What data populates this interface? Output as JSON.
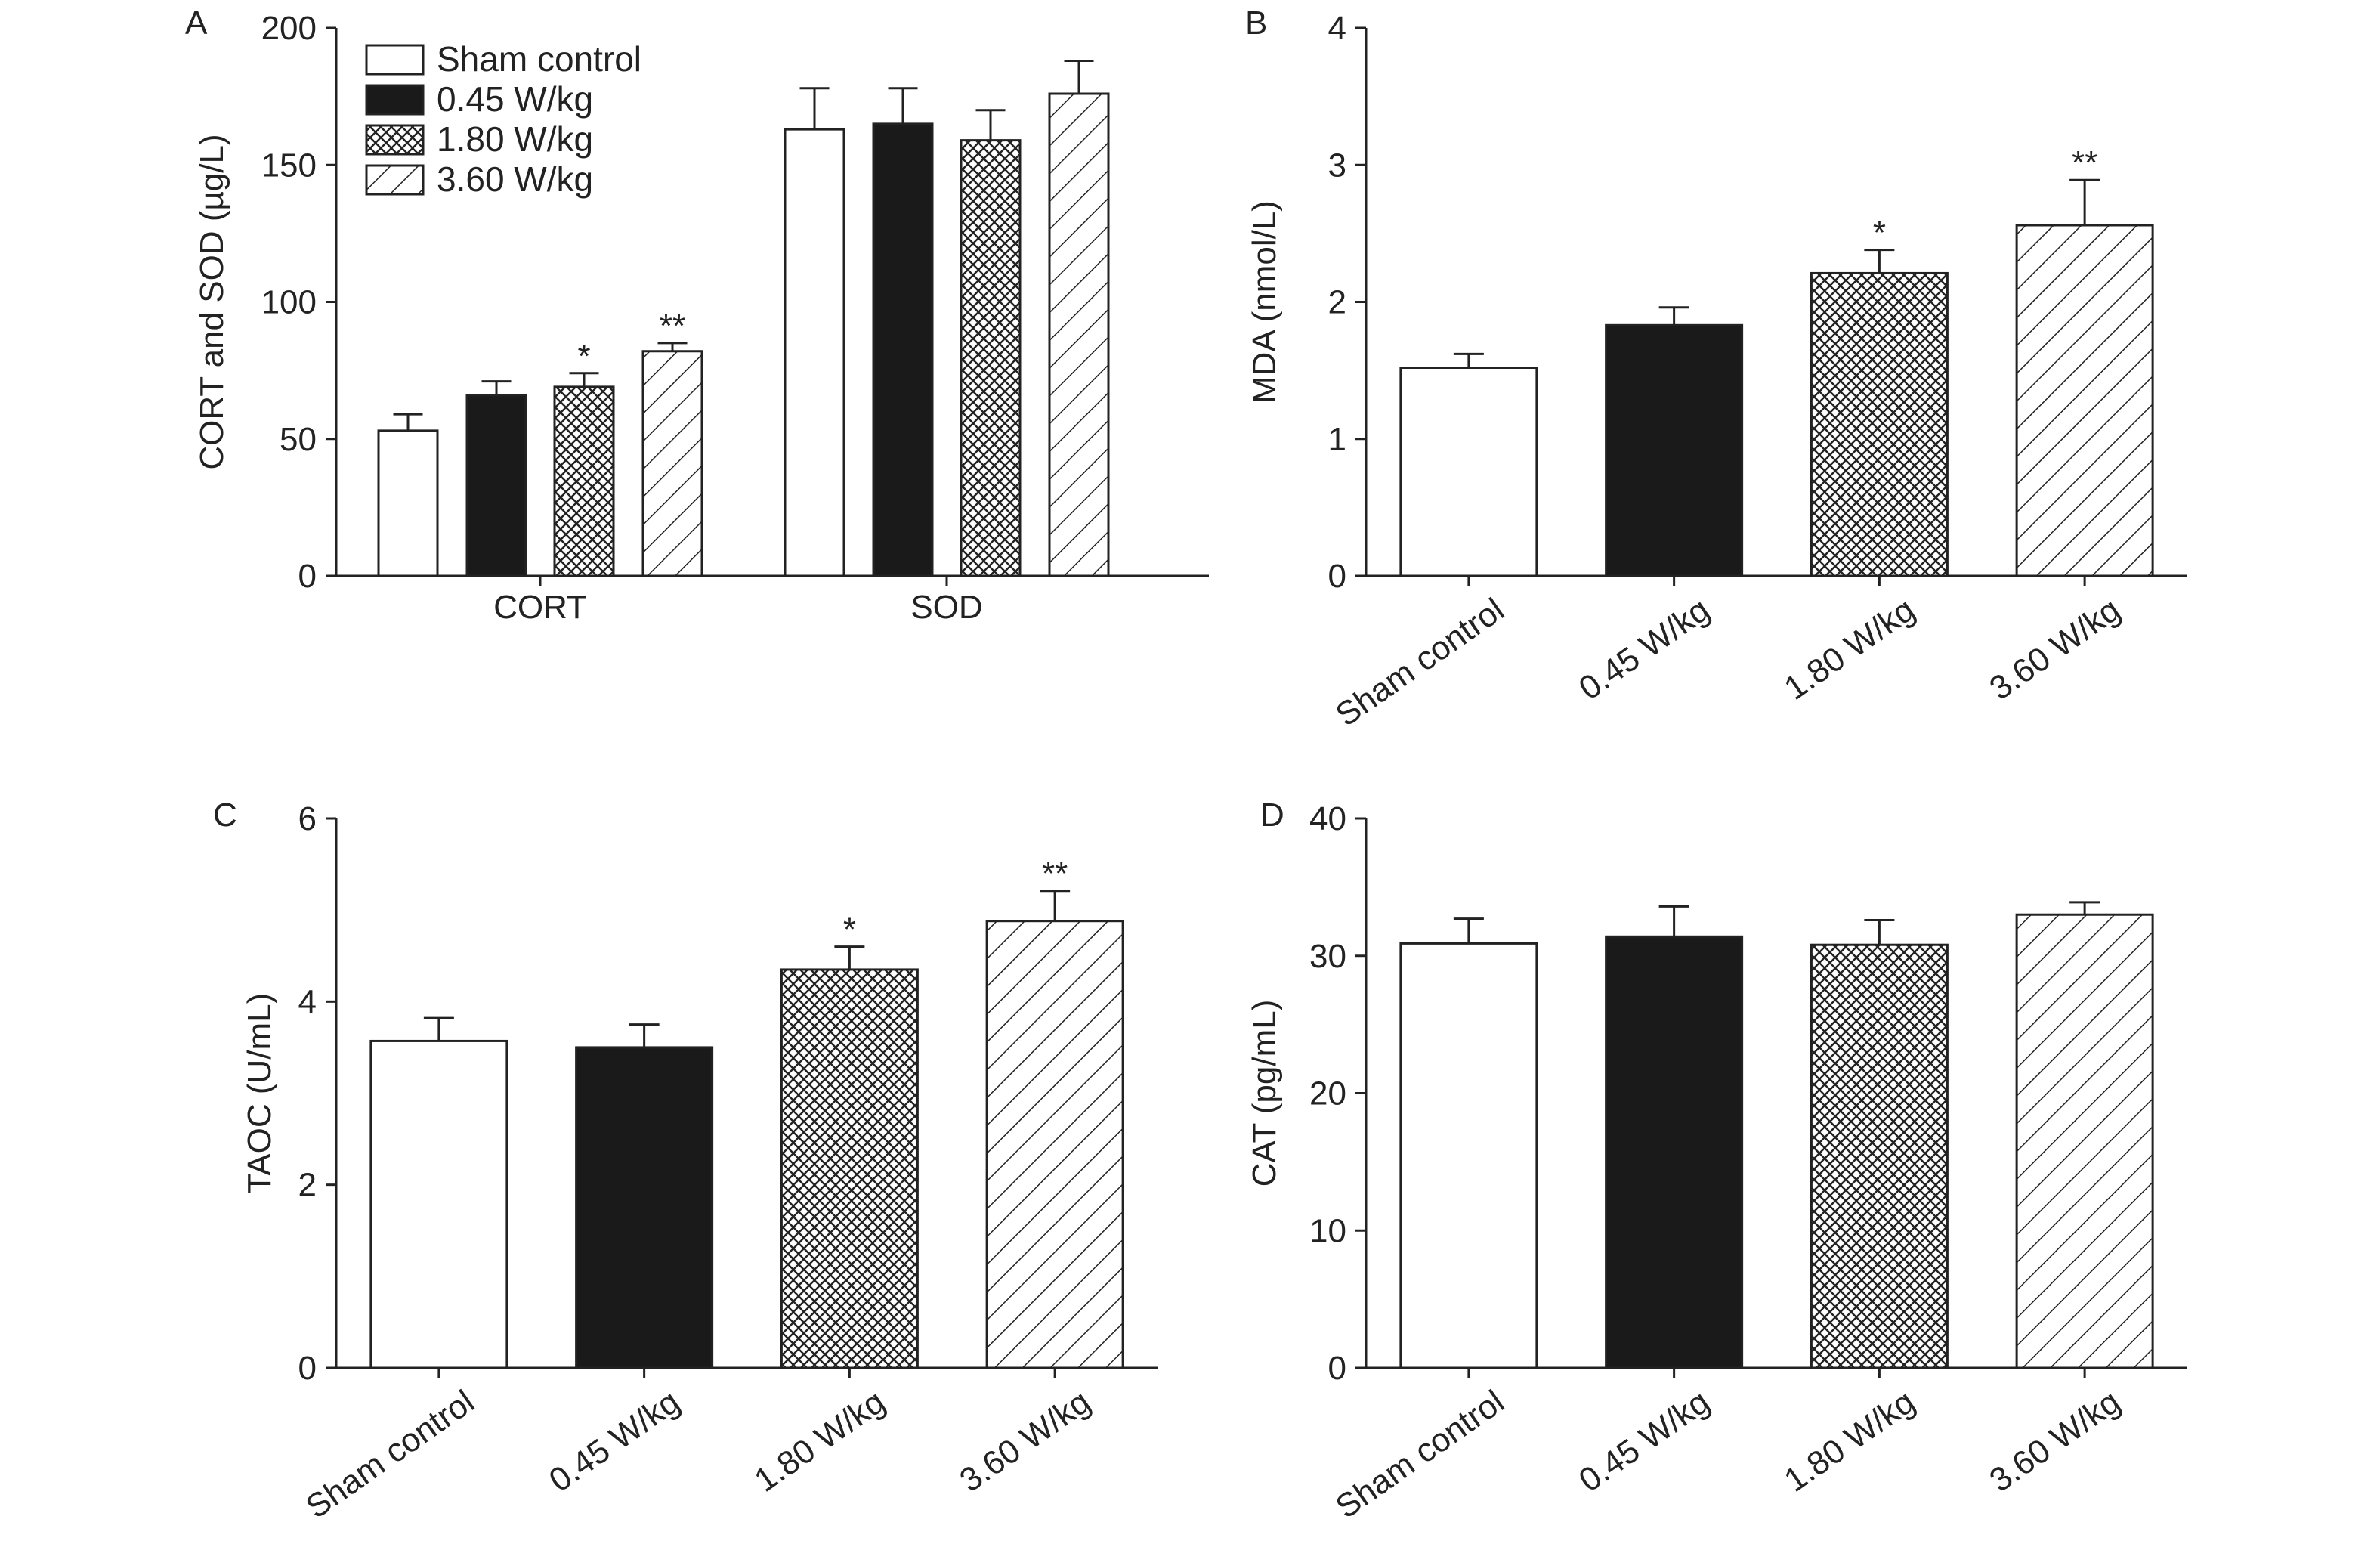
{
  "colors": {
    "axis": "#222222",
    "bar_stroke": "#222222",
    "sham_fill": "#ffffff",
    "low_fill": "#1a1a1a",
    "pattern_ink": "#222222"
  },
  "groups": [
    {
      "name": "Sham control",
      "pattern": "white"
    },
    {
      "name": "0.45 W/kg",
      "pattern": "black"
    },
    {
      "name": "1.80 W/kg",
      "pattern": "crosshatch"
    },
    {
      "name": "3.60 W/kg",
      "pattern": "diagonal"
    }
  ],
  "chart_data": [
    {
      "panel": "A",
      "type": "bar",
      "ylabel": "CORT and SOD (µg/L)",
      "ylim": [
        0,
        200
      ],
      "yticks": [
        0,
        50,
        100,
        150,
        200
      ],
      "categories": [
        "CORT",
        "SOD"
      ],
      "legend": "top-left",
      "series": [
        {
          "name": "Sham control",
          "values": [
            53,
            163
          ],
          "errors": [
            6,
            15
          ],
          "significance": [
            "",
            ""
          ]
        },
        {
          "name": "0.45 W/kg",
          "values": [
            66,
            165
          ],
          "errors": [
            5,
            13
          ],
          "significance": [
            "",
            ""
          ]
        },
        {
          "name": "1.80 W/kg",
          "values": [
            69,
            159
          ],
          "errors": [
            5,
            11
          ],
          "significance": [
            "*",
            ""
          ]
        },
        {
          "name": "3.60 W/kg",
          "values": [
            82,
            176
          ],
          "errors": [
            3,
            12
          ],
          "significance": [
            "**",
            ""
          ]
        }
      ]
    },
    {
      "panel": "B",
      "type": "bar",
      "ylabel": "MDA (nmol/L)",
      "ylim": [
        0,
        4
      ],
      "yticks": [
        0,
        1,
        2,
        3,
        4
      ],
      "categories": [
        "Sham control",
        "0.45 W/kg",
        "1.80 W/kg",
        "3.60 W/kg"
      ],
      "values": [
        1.52,
        1.83,
        2.21,
        2.56
      ],
      "errors": [
        0.1,
        0.13,
        0.17,
        0.33
      ],
      "significance": [
        "",
        "",
        "*",
        "**"
      ]
    },
    {
      "panel": "C",
      "type": "bar",
      "ylabel": "TAOC (U/mL)",
      "ylim": [
        0,
        6
      ],
      "yticks": [
        0,
        2,
        4,
        6
      ],
      "categories": [
        "Sham control",
        "0.45 W/kg",
        "1.80 W/kg",
        "3.60 W/kg"
      ],
      "values": [
        3.57,
        3.5,
        4.35,
        4.88
      ],
      "errors": [
        0.25,
        0.25,
        0.25,
        0.33
      ],
      "significance": [
        "",
        "",
        "*",
        "**"
      ]
    },
    {
      "panel": "D",
      "type": "bar",
      "ylabel": "CAT (pg/mL)",
      "ylim": [
        0,
        40
      ],
      "yticks": [
        0,
        10,
        20,
        30,
        40
      ],
      "categories": [
        "Sham control",
        "0.45 W/kg",
        "1.80 W/kg",
        "3.60 W/kg"
      ],
      "values": [
        30.9,
        31.4,
        30.8,
        33.0
      ],
      "errors": [
        1.8,
        2.2,
        1.8,
        0.9
      ],
      "significance": [
        "",
        "",
        "",
        ""
      ]
    }
  ]
}
